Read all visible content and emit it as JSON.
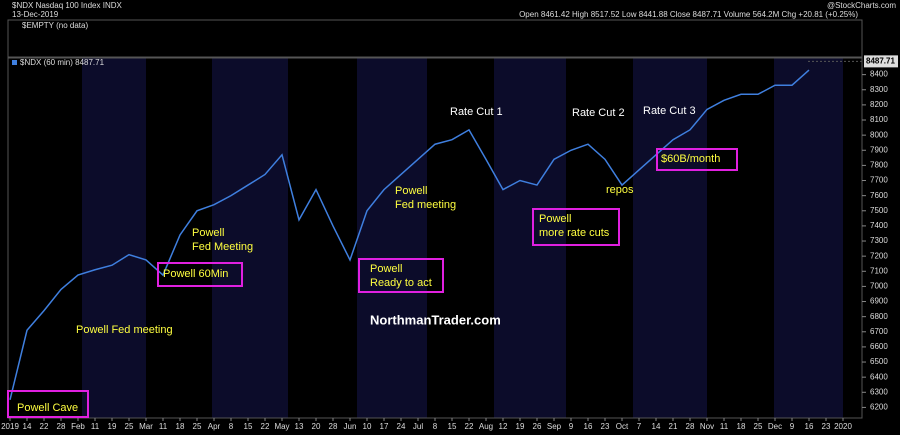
{
  "header": {
    "symbol": "$NDX Nasdaq 100 Index INDX",
    "date": "13-Dec-2019",
    "quote": "Open 8461.42 High 8517.52 Low 8441.88 Close 8487.71 Volume 564.2M Chg +20.81 (+0.25%)",
    "brand": "@StockCharts.com",
    "panel": "$EMPTY (no data)"
  },
  "chart_data": {
    "type": "line",
    "legend": "$NDX (60 min) 8487.71",
    "last_label": "8487.71",
    "last": 8487.71,
    "color": "#3f7fdf",
    "categories": [
      "2019",
      "14",
      "22",
      "28",
      "Feb",
      "11",
      "19",
      "25",
      "Mar",
      "11",
      "18",
      "25",
      "Apr",
      "8",
      "15",
      "22",
      "May",
      "13",
      "20",
      "28",
      "Jun",
      "10",
      "17",
      "24",
      "Jul",
      "8",
      "15",
      "22",
      "Aug",
      "12",
      "19",
      "26",
      "Sep",
      "9",
      "16",
      "23",
      "Oct",
      "7",
      "14",
      "21",
      "28",
      "Nov",
      "11",
      "18",
      "25",
      "Dec",
      "9",
      "16",
      "23",
      "2020"
    ],
    "values": [
      6250,
      6710,
      6840,
      6980,
      7075,
      7110,
      7140,
      7210,
      7175,
      7075,
      7340,
      7500,
      7540,
      7600,
      7670,
      7740,
      7870,
      7440,
      7640,
      7400,
      7175,
      7500,
      7640,
      7740,
      7840,
      7940,
      7970,
      8035,
      7840,
      7640,
      7700,
      7670,
      7840,
      7900,
      7940,
      7840,
      7670,
      7770,
      7870,
      7970,
      8035,
      8170,
      8230,
      8270,
      8270,
      8330,
      8330,
      8430,
      null,
      null
    ],
    "ylim": [
      6130,
      8510
    ],
    "yticks": [
      6200,
      6300,
      6400,
      6500,
      6600,
      6700,
      6800,
      6900,
      7000,
      7100,
      7200,
      7300,
      7400,
      7500,
      7600,
      7700,
      7800,
      7900,
      8000,
      8100,
      8200,
      8300,
      8400
    ],
    "annotations": [
      {
        "lines": [
          "Powell Cave"
        ]
      },
      {
        "lines": [
          "Powell Fed meeting"
        ]
      },
      {
        "lines": [
          "Powell 60Min"
        ]
      },
      {
        "lines": [
          "Powell",
          "Fed Meeting"
        ]
      },
      {
        "lines": [
          "Powell",
          "Ready to act"
        ]
      },
      {
        "lines": [
          "Powell",
          "Fed meeting"
        ]
      },
      {
        "lines": [
          "Rate Cut 1"
        ]
      },
      {
        "lines": [
          "Rate Cut 2"
        ]
      },
      {
        "lines": [
          "Rate Cut 3"
        ]
      },
      {
        "lines": [
          "Powell",
          "more rate cuts"
        ]
      },
      {
        "lines": [
          "repos"
        ]
      },
      {
        "lines": [
          "$60B/month"
        ]
      },
      {
        "lines": [
          "NorthmanTrader.com"
        ]
      }
    ]
  }
}
